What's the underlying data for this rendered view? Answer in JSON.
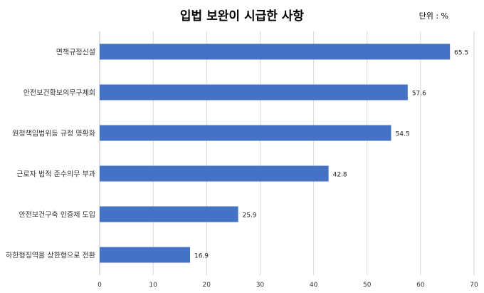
{
  "unit": "단위 : %",
  "chart_data": {
    "type": "bar",
    "orientation": "horizontal",
    "title": "입법 보완이 시급한 사항",
    "categories": [
      "면책규정신설",
      "안전보건확보의무구체회",
      "원청책임범위등 규정 명확화",
      "근로자 법적 준수의무 부과",
      "안전보건구축 인증제 도입",
      "하한형징역을 상한형으로 전환"
    ],
    "values": [
      65.5,
      57.6,
      54.5,
      42.8,
      25.9,
      16.9
    ],
    "xlim": [
      0,
      70
    ],
    "xticks": [
      0,
      10,
      20,
      30,
      40,
      50,
      60,
      70
    ],
    "grid": true,
    "bar_color": "#4472C4"
  }
}
